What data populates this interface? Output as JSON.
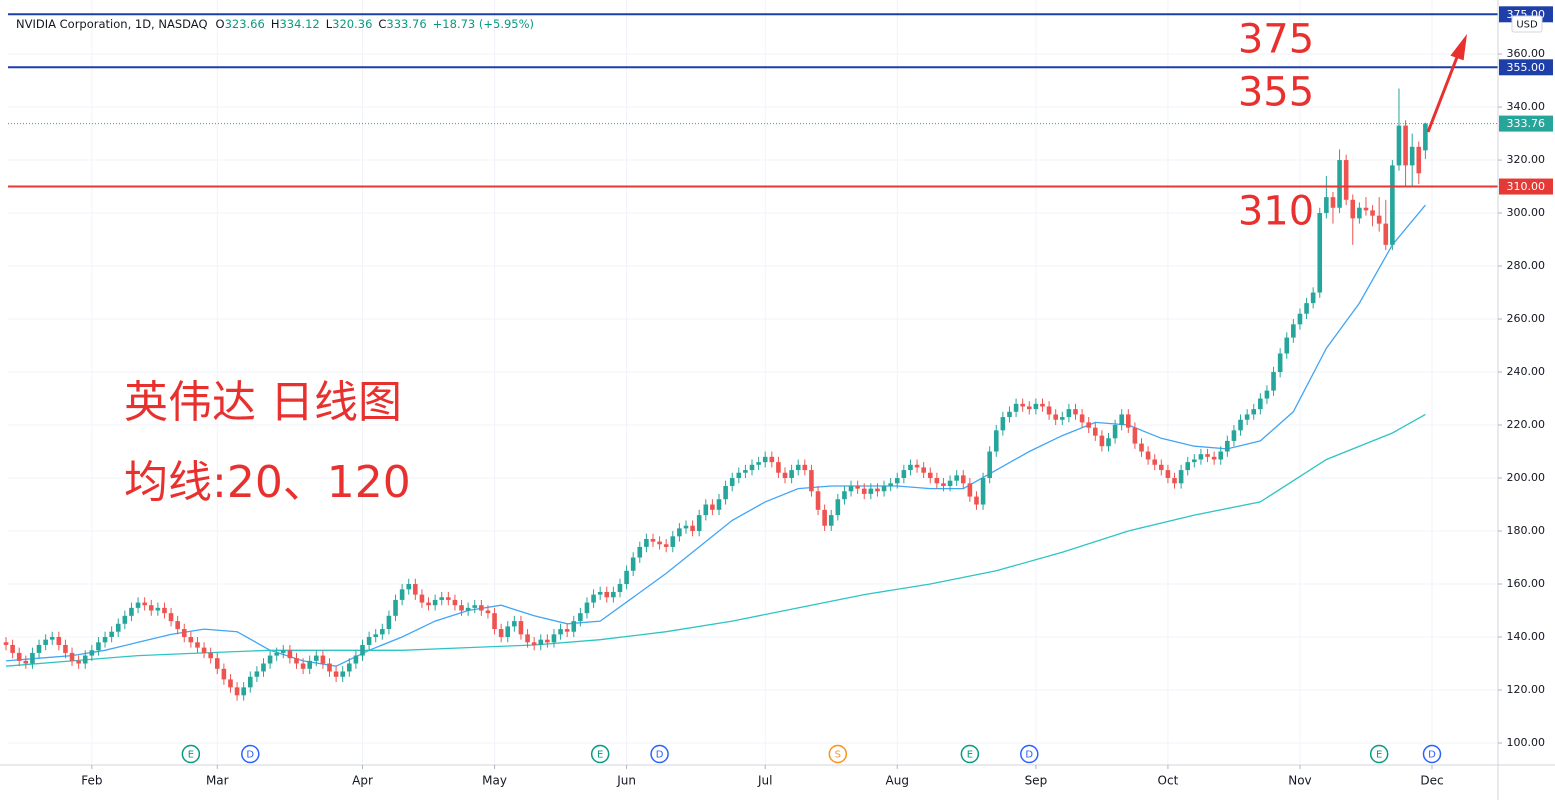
{
  "chart_data": {
    "type": "candlestick",
    "title": "NVIDIA Corporation, 1D, NASDAQ",
    "ohlc_letters": [
      "O",
      "H",
      "L",
      "C"
    ],
    "change_label": "+18.73 (+5.95%)",
    "currency": "USD",
    "annotations": [
      "英伟达 日线图",
      "均线:20、120"
    ],
    "annotation_color": "#e8312f",
    "up_color": "#26a69a",
    "down_color": "#ef5350",
    "grid": true,
    "xlim": [
      0.3,
      226
    ],
    "ylim": [
      91.7,
      380.4
    ],
    "xticks": [
      {
        "value": 13,
        "label": "Feb"
      },
      {
        "value": 32,
        "label": "Mar"
      },
      {
        "value": 54,
        "label": "Apr"
      },
      {
        "value": 74,
        "label": "May"
      },
      {
        "value": 94,
        "label": "Jun"
      },
      {
        "value": 115,
        "label": "Jul"
      },
      {
        "value": 135,
        "label": "Aug"
      },
      {
        "value": 156,
        "label": "Sep"
      },
      {
        "value": 176,
        "label": "Oct"
      },
      {
        "value": 196,
        "label": "Nov"
      },
      {
        "value": 216,
        "label": "Dec"
      }
    ],
    "yticks": [
      {
        "value": 100,
        "label": "100.00"
      },
      {
        "value": 120,
        "label": "120.00"
      },
      {
        "value": 140,
        "label": "140.00"
      },
      {
        "value": 160,
        "label": "160.00"
      },
      {
        "value": 180,
        "label": "180.00"
      },
      {
        "value": 200,
        "label": "200.00"
      },
      {
        "value": 220,
        "label": "220.00"
      },
      {
        "value": 240,
        "label": "240.00"
      },
      {
        "value": 260,
        "label": "260.00"
      },
      {
        "value": 280,
        "label": "280.00"
      },
      {
        "value": 300,
        "label": "300.00"
      },
      {
        "value": 320,
        "label": "320.00"
      },
      {
        "value": 340,
        "label": "340.00"
      },
      {
        "value": 360,
        "label": "360.00"
      }
    ],
    "levels": [
      {
        "value": 375,
        "label": "375.00",
        "note": "375",
        "color": "#1e3fa8"
      },
      {
        "value": 355,
        "label": "355.00",
        "note": "355",
        "color": "#1e3fa8"
      },
      {
        "value": 310,
        "label": "310.00",
        "note": "310",
        "color": "#e53935"
      }
    ],
    "last_color": "#26a69a",
    "events": [
      {
        "x": 28,
        "label": "E"
      },
      {
        "x": 37,
        "label": "D"
      },
      {
        "x": 90,
        "label": "E"
      },
      {
        "x": 99,
        "label": "D"
      },
      {
        "x": 126,
        "label": "S"
      },
      {
        "x": 146,
        "label": "E"
      },
      {
        "x": 155,
        "label": "D"
      },
      {
        "x": 208,
        "label": "E"
      },
      {
        "x": 216,
        "label": "D"
      }
    ],
    "event_colors": {
      "E": "#089981",
      "D": "#2962ff",
      "S": "#f7931a"
    },
    "open": [
      138,
      137,
      134,
      131,
      130,
      134,
      137,
      139,
      140,
      137,
      134,
      131,
      130,
      133,
      135,
      138,
      140,
      142,
      145,
      148,
      151,
      153,
      152,
      150,
      151,
      149,
      146,
      143,
      140,
      138,
      136,
      134,
      132,
      128,
      124,
      121,
      118,
      121,
      125,
      127,
      130,
      133,
      134,
      135,
      132,
      130,
      128,
      131,
      133,
      130,
      127,
      125,
      127,
      130,
      133,
      137,
      140,
      141,
      143,
      148,
      154,
      158,
      160,
      156,
      153,
      152,
      154,
      155,
      154,
      152,
      150,
      151,
      152,
      150,
      149,
      143,
      140,
      144,
      146,
      141,
      138,
      137,
      139,
      138,
      141,
      143,
      142,
      146,
      149,
      153,
      156,
      157,
      155,
      157,
      160,
      165,
      170,
      174,
      177,
      176,
      175,
      174,
      178,
      181,
      182,
      180,
      186,
      190,
      188,
      192,
      197,
      200,
      202,
      203,
      205,
      206,
      208,
      206,
      202,
      200,
      203,
      205,
      203,
      195,
      188,
      182,
      186,
      192,
      195,
      197,
      196,
      194,
      196,
      195,
      197,
      198,
      200,
      203,
      205,
      204,
      202,
      200,
      198,
      197,
      199,
      201,
      198,
      193,
      190,
      200,
      210,
      218,
      223,
      225,
      228,
      227,
      226,
      228,
      227,
      224,
      222,
      223,
      226,
      224,
      221,
      219,
      216,
      212,
      215,
      220,
      224,
      219,
      213,
      210,
      207,
      205,
      203,
      200,
      198,
      203,
      206,
      207,
      209,
      208,
      207,
      210,
      214,
      218,
      222,
      224,
      226,
      230,
      233,
      240,
      247,
      253,
      258,
      262,
      266,
      270,
      300,
      306,
      302,
      320,
      305,
      298,
      302,
      301,
      299,
      296,
      288,
      318,
      333,
      318,
      325,
      323.66
    ],
    "high": [
      140,
      139,
      136,
      133,
      136,
      139,
      141,
      142,
      142,
      139,
      136,
      133,
      135,
      137,
      140,
      142,
      144,
      147,
      150,
      153,
      155,
      155,
      154,
      153,
      153,
      151,
      148,
      145,
      142,
      140,
      138,
      136,
      134,
      130,
      126,
      123,
      123,
      127,
      129,
      132,
      135,
      136,
      137,
      137,
      134,
      132,
      133,
      135,
      135,
      132,
      129,
      129,
      132,
      135,
      139,
      142,
      143,
      145,
      150,
      156,
      160,
      162,
      162,
      158,
      155,
      156,
      157,
      157,
      156,
      154,
      153,
      154,
      154,
      152,
      151,
      145,
      146,
      148,
      148,
      143,
      140,
      141,
      141,
      143,
      145,
      145,
      148,
      151,
      155,
      158,
      159,
      159,
      159,
      162,
      167,
      172,
      176,
      179,
      179,
      178,
      177,
      180,
      183,
      184,
      184,
      188,
      192,
      192,
      194,
      199,
      202,
      204,
      205,
      207,
      208,
      210,
      210,
      208,
      204,
      205,
      207,
      207,
      205,
      197,
      190,
      188,
      194,
      197,
      199,
      199,
      198,
      198,
      198,
      199,
      200,
      202,
      205,
      207,
      207,
      206,
      204,
      202,
      200,
      201,
      203,
      203,
      200,
      195,
      202,
      212,
      220,
      225,
      227,
      230,
      230,
      229,
      230,
      230,
      229,
      226,
      225,
      228,
      228,
      226,
      223,
      221,
      218,
      217,
      222,
      226,
      226,
      221,
      215,
      212,
      209,
      207,
      205,
      202,
      205,
      208,
      209,
      211,
      211,
      210,
      212,
      216,
      220,
      224,
      226,
      228,
      232,
      235,
      242,
      249,
      255,
      260,
      264,
      268,
      272,
      302,
      314,
      308,
      324,
      322,
      307,
      304,
      306,
      303,
      306,
      305,
      320,
      347,
      335,
      330,
      327,
      334.12
    ],
    "low": [
      135,
      132,
      129,
      128,
      128,
      132,
      135,
      137,
      135,
      132,
      129,
      128,
      128,
      131,
      133,
      136,
      138,
      140,
      143,
      146,
      149,
      150,
      148,
      148,
      147,
      144,
      141,
      138,
      136,
      134,
      132,
      130,
      126,
      122,
      119,
      116,
      116,
      119,
      123,
      125,
      128,
      131,
      132,
      130,
      128,
      126,
      126,
      129,
      128,
      125,
      123,
      123,
      125,
      128,
      131,
      135,
      138,
      139,
      141,
      146,
      152,
      156,
      154,
      151,
      150,
      150,
      152,
      152,
      150,
      148,
      148,
      149,
      148,
      147,
      141,
      138,
      138,
      142,
      139,
      136,
      135,
      135,
      136,
      136,
      139,
      140,
      140,
      144,
      147,
      151,
      154,
      153,
      153,
      155,
      158,
      163,
      168,
      172,
      174,
      173,
      172,
      172,
      176,
      179,
      178,
      178,
      184,
      186,
      186,
      190,
      195,
      198,
      200,
      201,
      203,
      204,
      204,
      200,
      198,
      198,
      201,
      201,
      193,
      186,
      180,
      180,
      184,
      190,
      193,
      194,
      192,
      192,
      193,
      193,
      195,
      196,
      198,
      201,
      202,
      200,
      198,
      196,
      195,
      195,
      197,
      196,
      191,
      188,
      188,
      198,
      208,
      216,
      221,
      223,
      225,
      224,
      224,
      225,
      222,
      220,
      220,
      221,
      222,
      219,
      217,
      214,
      210,
      210,
      213,
      218,
      217,
      211,
      208,
      205,
      203,
      201,
      198,
      196,
      196,
      201,
      204,
      205,
      206,
      205,
      205,
      208,
      212,
      216,
      220,
      222,
      224,
      228,
      231,
      238,
      245,
      251,
      256,
      260,
      264,
      268,
      298,
      296,
      300,
      303,
      288,
      296,
      299,
      295,
      293,
      286,
      286,
      316,
      310,
      310,
      311,
      320.36
    ],
    "close": [
      137,
      134,
      131,
      130,
      134,
      137,
      139,
      140,
      137,
      134,
      131,
      130,
      133,
      135,
      138,
      140,
      142,
      145,
      148,
      151,
      153,
      152,
      150,
      151,
      149,
      146,
      143,
      140,
      138,
      136,
      134,
      132,
      128,
      124,
      121,
      118,
      121,
      125,
      127,
      130,
      133,
      134,
      135,
      132,
      130,
      128,
      131,
      133,
      130,
      127,
      125,
      127,
      130,
      133,
      137,
      140,
      141,
      143,
      148,
      154,
      158,
      160,
      156,
      153,
      152,
      154,
      155,
      154,
      152,
      150,
      151,
      152,
      150,
      149,
      143,
      140,
      144,
      146,
      141,
      138,
      137,
      139,
      138,
      141,
      143,
      142,
      146,
      149,
      153,
      156,
      157,
      155,
      157,
      160,
      165,
      170,
      174,
      177,
      176,
      175,
      174,
      178,
      181,
      182,
      180,
      186,
      190,
      188,
      192,
      197,
      200,
      202,
      203,
      205,
      206,
      208,
      206,
      202,
      200,
      203,
      205,
      203,
      195,
      188,
      182,
      186,
      192,
      195,
      197,
      196,
      194,
      196,
      195,
      197,
      198,
      200,
      203,
      205,
      204,
      202,
      200,
      198,
      197,
      199,
      201,
      198,
      193,
      190,
      200,
      210,
      218,
      223,
      225,
      228,
      227,
      226,
      228,
      227,
      224,
      222,
      223,
      226,
      224,
      221,
      219,
      216,
      212,
      215,
      220,
      224,
      219,
      213,
      210,
      207,
      205,
      203,
      200,
      198,
      203,
      206,
      207,
      209,
      208,
      207,
      210,
      214,
      218,
      222,
      224,
      226,
      230,
      233,
      240,
      247,
      253,
      258,
      262,
      266,
      270,
      300,
      306,
      302,
      320,
      305,
      298,
      302,
      301,
      299,
      296,
      288,
      318,
      333,
      318,
      325,
      315,
      333.76
    ],
    "overlays": [
      {
        "color": "#42a5f5",
        "x": [
          0,
          5,
          10,
          15,
          20,
          25,
          30,
          35,
          40,
          45,
          50,
          55,
          60,
          65,
          70,
          75,
          80,
          85,
          90,
          95,
          100,
          105,
          110,
          115,
          120,
          125,
          130,
          135,
          140,
          145,
          150,
          155,
          160,
          165,
          170,
          175,
          180,
          185,
          190,
          195,
          200,
          205,
          210,
          215
        ],
        "values": [
          131,
          132,
          133,
          135,
          138,
          141,
          143,
          142,
          135,
          131,
          129,
          135,
          140,
          146,
          150,
          152,
          148,
          145,
          146,
          155,
          164,
          174,
          184,
          191,
          196,
          197,
          197,
          197,
          196,
          196,
          203,
          210,
          216,
          221,
          220,
          215,
          212,
          211,
          214,
          225,
          249,
          266,
          288,
          303
        ]
      },
      {
        "color": "#2ec4c4",
        "x": [
          0,
          10,
          20,
          30,
          40,
          50,
          60,
          70,
          80,
          90,
          100,
          110,
          120,
          130,
          140,
          150,
          160,
          170,
          180,
          190,
          200,
          210,
          215
        ],
        "values": [
          129,
          131,
          133,
          134,
          135,
          135,
          135,
          136,
          137,
          139,
          142,
          146,
          151,
          156,
          160,
          165,
          172,
          180,
          186,
          191,
          207,
          217,
          224
        ]
      }
    ]
  }
}
